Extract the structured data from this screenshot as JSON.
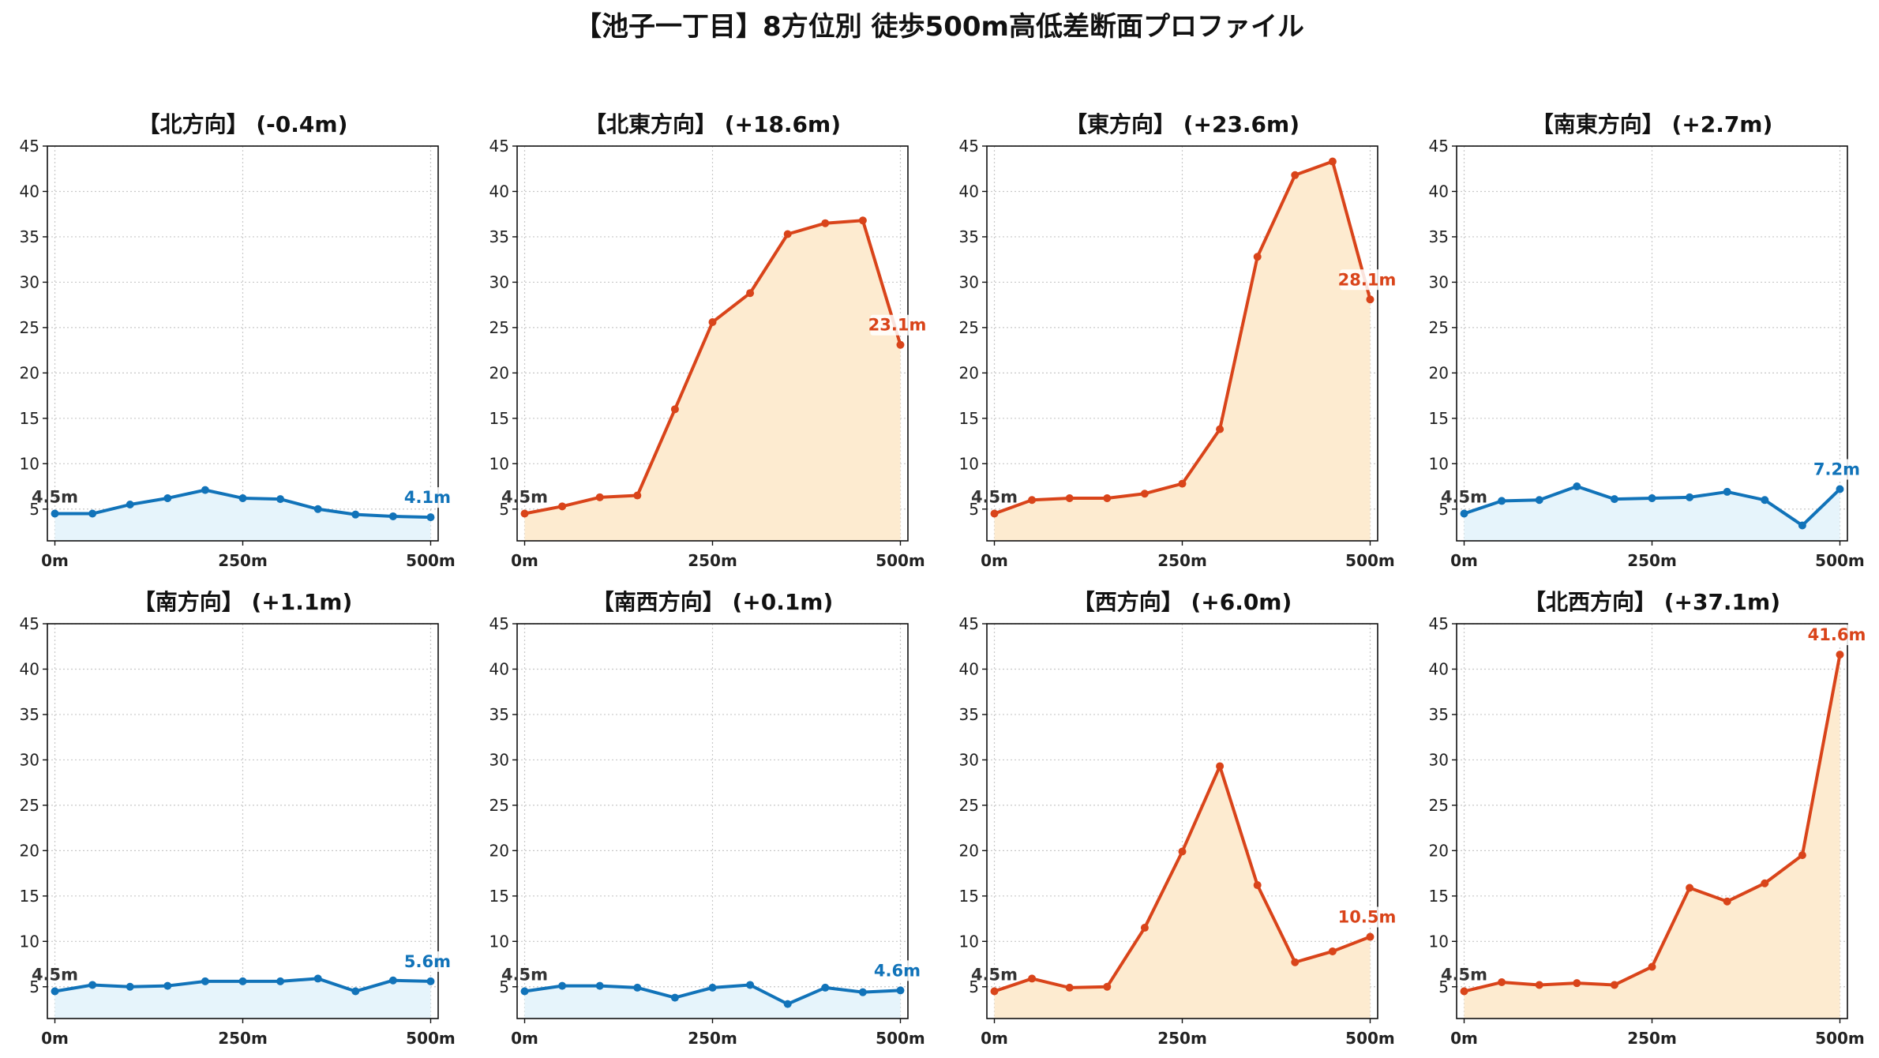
{
  "title": "【池子一丁目】8方位別 徒歩500m高低差断面プロファイル",
  "colors": {
    "up_line": "#d9441a",
    "up_fill": "#fdebd0",
    "down_line": "#1173b9",
    "down_fill": "#e6f4fb",
    "start_label": "#333333"
  },
  "chart_data": [
    {
      "type": "area",
      "title": "【北方向】 (-0.4m)",
      "trend": "down",
      "x": [
        0,
        50,
        100,
        150,
        200,
        250,
        300,
        350,
        400,
        450,
        500
      ],
      "y": [
        4.5,
        4.5,
        5.5,
        6.2,
        7.1,
        6.2,
        6.1,
        5.0,
        4.4,
        4.2,
        4.1
      ],
      "start_label": "4.5m",
      "end_label": "4.1m",
      "xticks": [
        "0m",
        "250m",
        "500m"
      ],
      "yticks": [
        5,
        10,
        15,
        20,
        25,
        30,
        35,
        40,
        45
      ],
      "ylim": [
        1.5,
        45
      ],
      "xlim": [
        -10,
        510
      ],
      "grid": true
    },
    {
      "type": "area",
      "title": "【北東方向】 (+18.6m)",
      "trend": "up",
      "x": [
        0,
        50,
        100,
        150,
        200,
        250,
        300,
        350,
        400,
        450,
        500
      ],
      "y": [
        4.5,
        5.3,
        6.3,
        6.5,
        16.0,
        25.6,
        28.8,
        35.3,
        36.5,
        36.8,
        23.1
      ],
      "start_label": "4.5m",
      "end_label": "23.1m",
      "xticks": [
        "0m",
        "250m",
        "500m"
      ],
      "yticks": [
        5,
        10,
        15,
        20,
        25,
        30,
        35,
        40,
        45
      ],
      "ylim": [
        1.5,
        45
      ],
      "xlim": [
        -10,
        510
      ],
      "grid": true
    },
    {
      "type": "area",
      "title": "【東方向】 (+23.6m)",
      "trend": "up",
      "x": [
        0,
        50,
        100,
        150,
        200,
        250,
        300,
        350,
        400,
        450,
        500
      ],
      "y": [
        4.5,
        6.0,
        6.2,
        6.2,
        6.7,
        7.8,
        13.8,
        32.8,
        41.8,
        43.3,
        28.1
      ],
      "start_label": "4.5m",
      "end_label": "28.1m",
      "xticks": [
        "0m",
        "250m",
        "500m"
      ],
      "yticks": [
        5,
        10,
        15,
        20,
        25,
        30,
        35,
        40,
        45
      ],
      "ylim": [
        1.5,
        45
      ],
      "xlim": [
        -10,
        510
      ],
      "grid": true
    },
    {
      "type": "area",
      "title": "【南東方向】 (+2.7m)",
      "trend": "down",
      "x": [
        0,
        50,
        100,
        150,
        200,
        250,
        300,
        350,
        400,
        450,
        500
      ],
      "y": [
        4.5,
        5.9,
        6.0,
        7.5,
        6.1,
        6.2,
        6.3,
        6.9,
        6.0,
        3.2,
        7.2
      ],
      "start_label": "4.5m",
      "end_label": "7.2m",
      "xticks": [
        "0m",
        "250m",
        "500m"
      ],
      "yticks": [
        5,
        10,
        15,
        20,
        25,
        30,
        35,
        40,
        45
      ],
      "ylim": [
        1.5,
        45
      ],
      "xlim": [
        -10,
        510
      ],
      "grid": true
    },
    {
      "type": "area",
      "title": "【南方向】 (+1.1m)",
      "trend": "down",
      "x": [
        0,
        50,
        100,
        150,
        200,
        250,
        300,
        350,
        400,
        450,
        500
      ],
      "y": [
        4.5,
        5.2,
        5.0,
        5.1,
        5.6,
        5.6,
        5.6,
        5.9,
        4.5,
        5.7,
        5.6
      ],
      "start_label": "4.5m",
      "end_label": "5.6m",
      "xticks": [
        "0m",
        "250m",
        "500m"
      ],
      "yticks": [
        5,
        10,
        15,
        20,
        25,
        30,
        35,
        40,
        45
      ],
      "ylim": [
        1.5,
        45
      ],
      "xlim": [
        -10,
        510
      ],
      "grid": true
    },
    {
      "type": "area",
      "title": "【南西方向】 (+0.1m)",
      "trend": "down",
      "x": [
        0,
        50,
        100,
        150,
        200,
        250,
        300,
        350,
        400,
        450,
        500
      ],
      "y": [
        4.5,
        5.1,
        5.1,
        4.9,
        3.8,
        4.9,
        5.2,
        3.1,
        4.9,
        4.4,
        4.6
      ],
      "start_label": "4.5m",
      "end_label": "4.6m",
      "xticks": [
        "0m",
        "250m",
        "500m"
      ],
      "yticks": [
        5,
        10,
        15,
        20,
        25,
        30,
        35,
        40,
        45
      ],
      "ylim": [
        1.5,
        45
      ],
      "xlim": [
        -10,
        510
      ],
      "grid": true
    },
    {
      "type": "area",
      "title": "【西方向】 (+6.0m)",
      "trend": "up",
      "x": [
        0,
        50,
        100,
        150,
        200,
        250,
        300,
        350,
        400,
        450,
        500
      ],
      "y": [
        4.5,
        5.9,
        4.9,
        5.0,
        11.5,
        19.9,
        29.3,
        16.2,
        7.7,
        8.9,
        10.5
      ],
      "start_label": "4.5m",
      "end_label": "10.5m",
      "xticks": [
        "0m",
        "250m",
        "500m"
      ],
      "yticks": [
        5,
        10,
        15,
        20,
        25,
        30,
        35,
        40,
        45
      ],
      "ylim": [
        1.5,
        45
      ],
      "xlim": [
        -10,
        510
      ],
      "grid": true
    },
    {
      "type": "area",
      "title": "【北西方向】 (+37.1m)",
      "trend": "up",
      "x": [
        0,
        50,
        100,
        150,
        200,
        250,
        300,
        350,
        400,
        450,
        500
      ],
      "y": [
        4.5,
        5.5,
        5.2,
        5.4,
        5.2,
        7.2,
        15.9,
        14.4,
        16.4,
        19.5,
        41.6
      ],
      "start_label": "4.5m",
      "end_label": "41.6m",
      "xticks": [
        "0m",
        "250m",
        "500m"
      ],
      "yticks": [
        5,
        10,
        15,
        20,
        25,
        30,
        35,
        40,
        45
      ],
      "ylim": [
        1.5,
        45
      ],
      "xlim": [
        -10,
        510
      ],
      "grid": true
    }
  ]
}
